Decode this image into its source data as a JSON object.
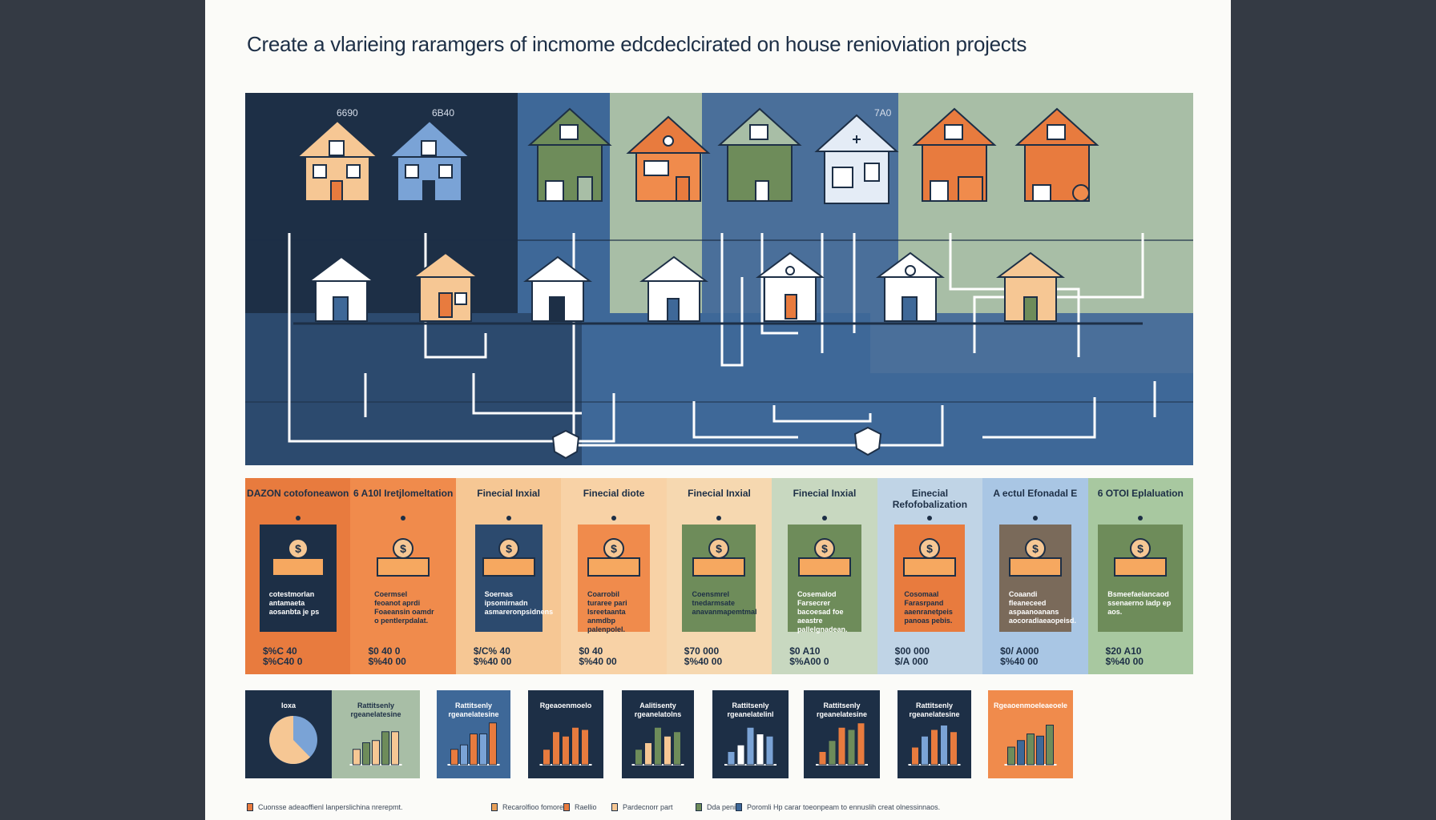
{
  "title": "Create a vlarieing raramgers of incmome edcdeclcirated on house renioviation projects",
  "top_values": [
    "6690",
    "6B40",
    "7A0"
  ],
  "colors": {
    "navy": "#1d2f46",
    "blue": "#3e6898",
    "slate_blue": "#4a6f9a",
    "sage": "#a8bea6",
    "green": "#6e8c5a",
    "orange": "#e87b3e",
    "peach": "#f6c794",
    "light_blue": "#bcd0e6"
  },
  "columns": [
    {
      "header": "DAZON cotofoneawon",
      "description": "cotestmorlan antamaeta aosanbta je ps",
      "amount_line1": "$%C 40",
      "amount_line2": "$%C40 0"
    },
    {
      "header": "6 A10l Iretjlomeltation",
      "description": "Coermsel feoanot aprdi Foaeansin oamdr o pentlerpdalat.",
      "amount_line1": "$0 40 0",
      "amount_line2": "$%40 00"
    },
    {
      "header": "Finecial Inxial",
      "description": "Soernas ipsomirnadn asmareronpsidnens",
      "amount_line1": "$/C% 40",
      "amount_line2": "$%40 00"
    },
    {
      "header": "Finecial diote",
      "description": "Coarrobil turaree pari Isreetaanta anmdbp palenpolel.",
      "amount_line1": "$0 40",
      "amount_line2": "$%40 00"
    },
    {
      "header": "Finecial Inxial",
      "description": "Coensmrel tnedarmsate anavanmapemtmal",
      "amount_line1": "$70 000",
      "amount_line2": "$%40 00"
    },
    {
      "header": "Finecial Inxial",
      "description": "Cosemalod Farsecrer bacoesad foe aeastre pallelgnadean.",
      "amount_line1": "$0 A10",
      "amount_line2": "$%A00 0"
    },
    {
      "header": "Einecial Refofobalization",
      "description": "Cosomaal Farasrpand aaenranetpeis panoas pebis.",
      "amount_line1": "$00 000",
      "amount_line2": "$/A 000"
    },
    {
      "header": "A ectul Efonadal E",
      "description": "Coaandi fleaneceed aspaanoanans aocoradiaeaopeisd.",
      "amount_line1": "$0/ A000",
      "amount_line2": "$%40 00"
    },
    {
      "header": "6 OTOI Eplaluation",
      "description": "Bsmeefaelancaod ssenaerno ladp ep aos.",
      "amount_line1": "$20 A10",
      "amount_line2": "$%40 00"
    }
  ],
  "mini_panels": [
    {
      "label": "Ioxa",
      "chart": "pie"
    },
    {
      "label": "Rattitsenly rgeanelatesine",
      "chart": "bars",
      "bars": [
        0.35,
        0.5,
        0.55,
        0.75,
        0.75
      ]
    },
    {
      "label": "Rattitsenly rgeanelatesine",
      "chart": "bars",
      "bars": [
        0.35,
        0.45,
        0.7,
        0.7,
        0.95
      ]
    },
    {
      "label": "Rgeaoenmoelo",
      "chart": "bars",
      "bars": [
        0.35,
        0.75,
        0.65,
        0.85,
        0.8
      ]
    },
    {
      "label": "Aalitisenty rgeanelatolns",
      "chart": "bars",
      "bars": [
        0.35,
        0.5,
        0.85,
        0.65,
        0.75
      ]
    },
    {
      "label": "Rattitsenly rgeanelatelinl",
      "chart": "bars",
      "bars": [
        0.3,
        0.45,
        0.85,
        0.7,
        0.65
      ]
    },
    {
      "label": "Rattitsenly rgeanelatesine",
      "chart": "bars",
      "bars": [
        0.3,
        0.55,
        0.85,
        0.8,
        0.95
      ]
    },
    {
      "label": "Rattitsenly rgeanelatesine",
      "chart": "bars",
      "bars": [
        0.4,
        0.65,
        0.8,
        0.9,
        0.75
      ]
    },
    {
      "label": "Rgeaoenmoeleaeoele",
      "chart": "bars",
      "bars": [
        0.4,
        0.55,
        0.7,
        0.65,
        0.9
      ]
    }
  ],
  "legend": [
    {
      "color": "#e87b3e",
      "label": "Cuonsse adeaoffienl lanperslichina nrerepmt."
    },
    {
      "color": "#e8a05a",
      "label": "Recarolfioo fomores"
    },
    {
      "color": "#e87b3e",
      "label": "Raellio"
    },
    {
      "color": "#f6c794",
      "label": "Pardecnorr part"
    },
    {
      "color": "#6e8c5a",
      "label": "Dda penil."
    },
    {
      "color": "#3e6898",
      "label": "Poromli Hp carar toeonpeam to ennuslih creat olnessinnaos."
    }
  ]
}
